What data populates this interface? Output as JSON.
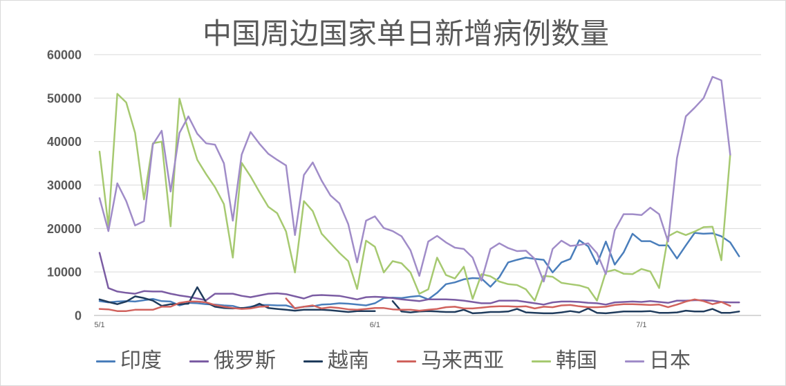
{
  "chart_data": {
    "type": "line",
    "title": "中国周边国家单日新增病例数量",
    "xlabel": "",
    "ylabel": "",
    "ylim": [
      0,
      60000
    ],
    "yticks": [
      0,
      10000,
      20000,
      30000,
      40000,
      50000,
      60000
    ],
    "xticks": [
      "5/1",
      "6/1",
      "7/1"
    ],
    "grid": true,
    "legend": "bottom",
    "x": [
      "5/1",
      "5/2",
      "5/3",
      "5/4",
      "5/5",
      "5/6",
      "5/7",
      "5/8",
      "5/9",
      "5/10",
      "5/11",
      "5/12",
      "5/13",
      "5/14",
      "5/15",
      "5/16",
      "5/17",
      "5/18",
      "5/19",
      "5/20",
      "5/21",
      "5/22",
      "5/23",
      "5/24",
      "5/25",
      "5/26",
      "5/27",
      "5/28",
      "5/29",
      "5/30",
      "5/31",
      "6/1",
      "6/2",
      "6/3",
      "6/4",
      "6/5",
      "6/6",
      "6/7",
      "6/8",
      "6/9",
      "6/10",
      "6/11",
      "6/12",
      "6/13",
      "6/14",
      "6/15",
      "6/16",
      "6/17",
      "6/18",
      "6/19",
      "6/20",
      "6/21",
      "6/22",
      "6/23",
      "6/24",
      "6/25",
      "6/26",
      "6/27",
      "6/28",
      "6/29",
      "6/30",
      "7/1",
      "7/2",
      "7/3",
      "7/4",
      "7/5",
      "7/6",
      "7/7",
      "7/8",
      "7/9",
      "7/10",
      "7/11",
      "7/12"
    ],
    "series": [
      {
        "name": "印度",
        "color": "#4A7EBB",
        "values": [
          3300,
          3000,
          3200,
          3300,
          3200,
          3500,
          3800,
          3300,
          3200,
          2300,
          2900,
          2800,
          2600,
          2500,
          2300,
          2200,
          1600,
          2000,
          2400,
          2400,
          2300,
          2300,
          1700,
          2000,
          2100,
          2500,
          2600,
          2800,
          2700,
          2500,
          2300,
          2800,
          4000,
          4100,
          4000,
          4300,
          4500,
          3700,
          5200,
          7200,
          7600,
          8300,
          8600,
          8500,
          6600,
          8800,
          12200,
          12800,
          13300,
          13000,
          12800,
          9900,
          12200,
          13000,
          17300,
          15900,
          11800,
          17000,
          11700,
          14500,
          18800,
          17100,
          17100,
          16100,
          16100,
          13100,
          16100,
          19000,
          18800,
          18900,
          18200,
          16800,
          13600
        ]
      },
      {
        "name": "俄罗斯",
        "color": "#7B5CA3",
        "values": [
          14400,
          6300,
          5500,
          5200,
          5000,
          5600,
          5500,
          5500,
          5000,
          4600,
          4300,
          3900,
          3500,
          5000,
          5000,
          5000,
          4500,
          4200,
          4600,
          5000,
          5100,
          4900,
          4400,
          3900,
          4600,
          4700,
          4600,
          4500,
          4100,
          3700,
          4200,
          4300,
          4200,
          4000,
          3700,
          3500,
          3300,
          3700,
          3700,
          3700,
          3600,
          3400,
          3100,
          2800,
          2800,
          3400,
          3400,
          3400,
          3100,
          2800,
          2500,
          3000,
          3200,
          3200,
          3100,
          2900,
          2800,
          2500,
          3000,
          3100,
          3200,
          3100,
          3300,
          3100,
          2900,
          3400,
          3400,
          3500,
          3500,
          3400,
          3100,
          3000,
          3000
        ]
      },
      {
        "name": "越南",
        "color": "#1F3B5C",
        "values": [
          3700,
          3100,
          2600,
          3200,
          4400,
          4000,
          3400,
          2200,
          2600,
          2600,
          2700,
          6500,
          3000,
          2000,
          1700,
          1600,
          1700,
          1800,
          2700,
          1700,
          1500,
          1300,
          1100,
          1300,
          1300,
          1300,
          1200,
          1000,
          800,
          1000,
          1000,
          1000,
          null,
          3300,
          900,
          700,
          900,
          1000,
          900,
          800,
          800,
          1300,
          500,
          600,
          800,
          800,
          900,
          1500,
          700,
          600,
          500,
          500,
          700,
          1000,
          700,
          1600,
          600,
          500,
          700,
          900,
          900,
          900,
          1000,
          600,
          600,
          700,
          1100,
          900,
          900,
          1500,
          600,
          600,
          900
        ]
      },
      {
        "name": "马来西亚",
        "color": "#D0625D",
        "values": [
          1500,
          1400,
          1000,
          1000,
          1300,
          1300,
          1300,
          2000,
          2000,
          2900,
          3200,
          3200,
          3000,
          2400,
          2000,
          1700,
          1500,
          1600,
          2000,
          2100,
          null,
          3900,
          1600,
          2000,
          2300,
          1600,
          1900,
          1700,
          1400,
          1300,
          1500,
          1700,
          1700,
          1400,
          1300,
          1300,
          1100,
          1300,
          1500,
          1900,
          2000,
          1600,
          1600,
          1800,
          2000,
          2100,
          2100,
          2000,
          2100,
          1600,
          2000,
          1900,
          2300,
          2400,
          2100,
          1900,
          1900,
          2000,
          2400,
          2600,
          2600,
          2500,
          2400,
          2500,
          1900,
          2500,
          3200,
          3700,
          3300,
          2600,
          3100,
          2200,
          null
        ]
      },
      {
        "name": "韩国",
        "color": "#A6C970",
        "values": [
          37700,
          20600,
          51000,
          49000,
          42000,
          26700,
          39600,
          40000,
          20500,
          49900,
          42500,
          35800,
          32500,
          29500,
          25600,
          13300,
          35100,
          32000,
          28400,
          25000,
          23500,
          19300,
          9900,
          26300,
          24000,
          18800,
          16600,
          14400,
          12500,
          6100,
          17200,
          15800,
          9900,
          12500,
          12000,
          9900,
          5000,
          6000,
          13300,
          9300,
          8500,
          11200,
          3800,
          9500,
          9000,
          7800,
          7200,
          7000,
          6000,
          3400,
          9100,
          8900,
          7500,
          7200,
          6900,
          6300,
          3400,
          10000,
          10500,
          9600,
          9500,
          10700,
          10100,
          6300,
          18200,
          19300,
          18500,
          19300,
          20300,
          20400,
          12700,
          37000,
          null
        ]
      },
      {
        "name": "日本",
        "color": "#A08CC8",
        "values": [
          27000,
          19400,
          30400,
          26300,
          20700,
          21700,
          39300,
          42500,
          28500,
          42000,
          45800,
          41800,
          39600,
          39300,
          35000,
          21800,
          37000,
          42200,
          39500,
          37200,
          35800,
          34500,
          18500,
          32300,
          35200,
          31000,
          27600,
          25800,
          21000,
          12200,
          21800,
          22800,
          20100,
          19400,
          18200,
          15000,
          9100,
          17000,
          18300,
          16800,
          15600,
          15300,
          13300,
          8000,
          15300,
          16600,
          15500,
          14800,
          14900,
          13000,
          7800,
          15300,
          17200,
          16000,
          16200,
          16600,
          14300,
          9500,
          19600,
          23300,
          23300,
          23100,
          24800,
          23300,
          17000,
          36200,
          45800,
          47800,
          50000,
          54900,
          54100,
          37000,
          null
        ]
      }
    ]
  }
}
